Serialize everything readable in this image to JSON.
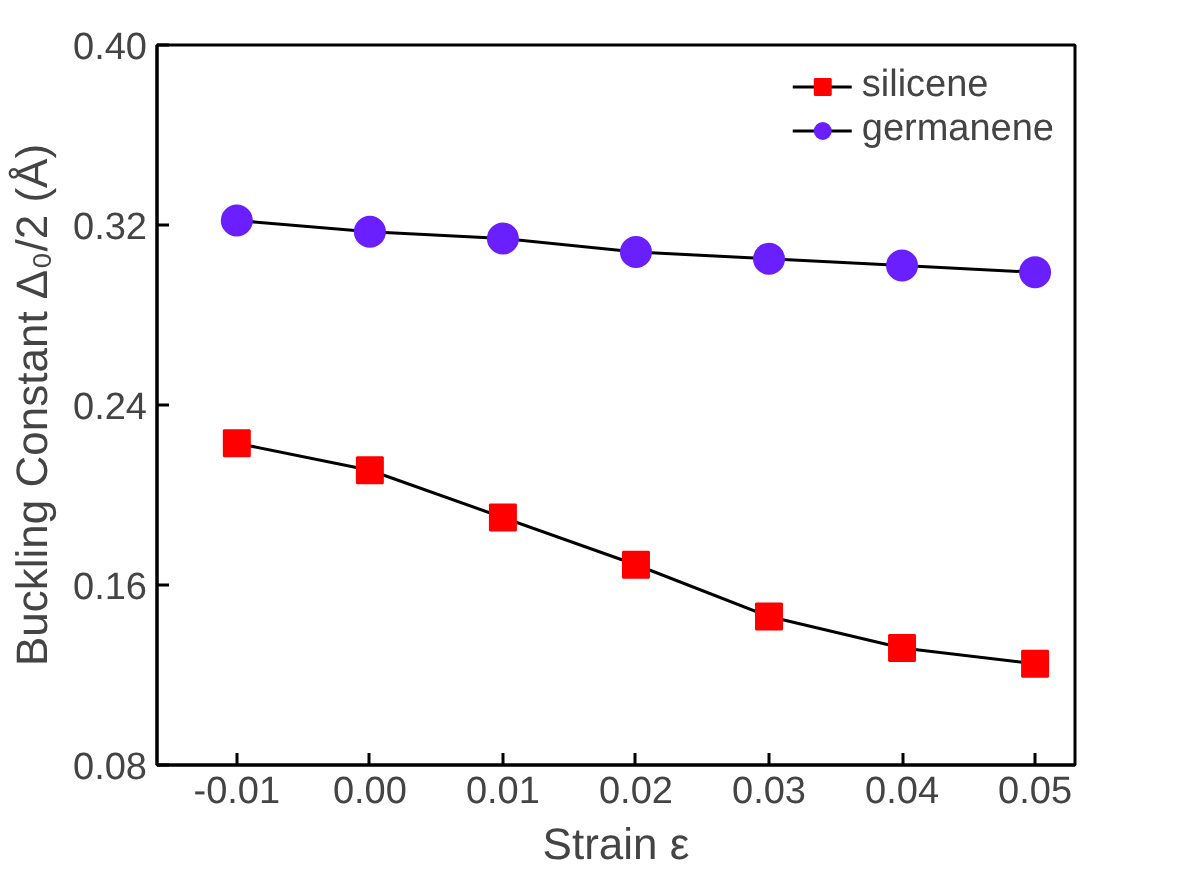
{
  "chart_data": {
    "type": "line",
    "xlabel": "Strain ε",
    "ylabel": "Buckling Constant Δ₀/2 (Å)",
    "x": [
      -0.01,
      0.0,
      0.01,
      0.02,
      0.03,
      0.04,
      0.05
    ],
    "series": [
      {
        "name": "silicene",
        "color": "#ff0000",
        "marker": "square",
        "values": [
          0.223,
          0.211,
          0.19,
          0.169,
          0.146,
          0.132,
          0.125
        ]
      },
      {
        "name": "germanene",
        "color": "#6a1fff",
        "marker": "circle",
        "values": [
          0.322,
          0.317,
          0.314,
          0.308,
          0.305,
          0.302,
          0.299
        ]
      }
    ],
    "xlim": [
      -0.016,
      0.053
    ],
    "ylim": [
      0.08,
      0.4
    ],
    "xticks": [
      {
        "value": -0.01,
        "label": "-0.01"
      },
      {
        "value": 0.0,
        "label": "0.00"
      },
      {
        "value": 0.01,
        "label": "0.01"
      },
      {
        "value": 0.02,
        "label": "0.02"
      },
      {
        "value": 0.03,
        "label": "0.03"
      },
      {
        "value": 0.04,
        "label": "0.04"
      },
      {
        "value": 0.05,
        "label": "0.05"
      }
    ],
    "yticks": [
      {
        "value": 0.08,
        "label": "0.08"
      },
      {
        "value": 0.16,
        "label": "0.16"
      },
      {
        "value": 0.24,
        "label": "0.24"
      },
      {
        "value": 0.32,
        "label": "0.32"
      },
      {
        "value": 0.4,
        "label": "0.40"
      }
    ],
    "legend": "top right",
    "grid": false,
    "line_style": "solid"
  }
}
